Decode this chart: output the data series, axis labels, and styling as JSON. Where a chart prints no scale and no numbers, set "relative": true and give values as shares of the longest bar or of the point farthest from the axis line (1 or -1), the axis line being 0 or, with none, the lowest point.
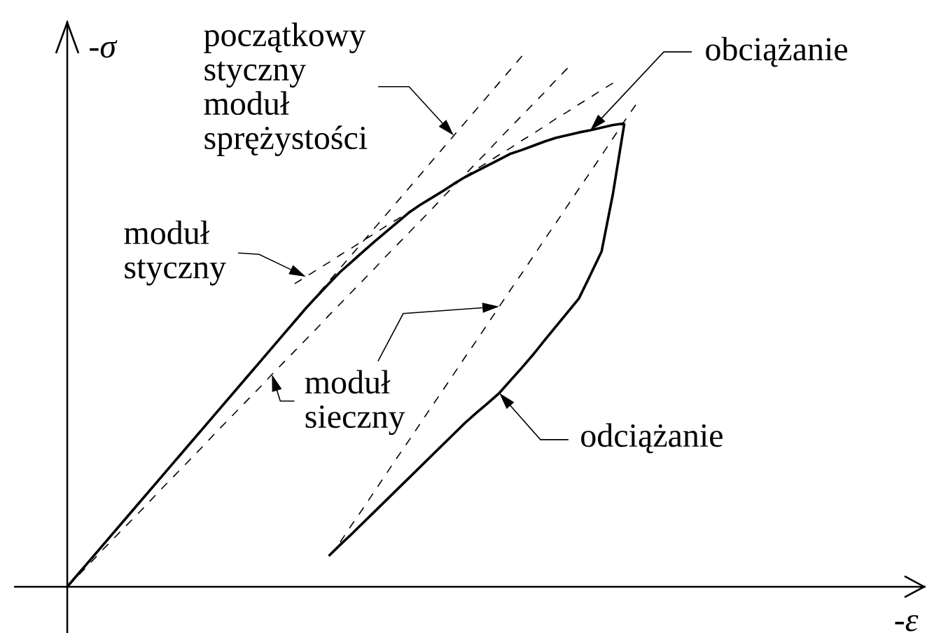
{
  "chart_data": {
    "type": "line",
    "relative": true,
    "ylabel": "-*σ*",
    "categories": [
      null,
      null,
      null,
      null,
      null,
      null,
      null,
      null,
      null,
      null,
      null,
      null,
      null,
      null,
      null,
      null,
      null,
      null,
      null,
      null,
      null,
      null,
      null,
      null,
      null,
      null,
      null,
      null,
      null,
      null,
      null,
      null,
      null,
      null,
      null,
      null,
      null,
      null,
      null,
      null,
      null,
      null,
      null,
      null,
      null,
      null,
      null,
      null,
      null,
      null,
      null
    ],
    "series": [
      {
        "color": "#000000",
        "line_style": "solid",
        "values": [
          0,
          0.025,
          0.05,
          0.075,
          0.1,
          0.125,
          0.15,
          0.175,
          0.2,
          0.225,
          0.25,
          0.275,
          0.3,
          0.325,
          0.35,
          0.375,
          0.4,
          0.425,
          0.45,
          0.475,
          0.5,
          0.525,
          0.548,
          0.571,
          0.593,
          0.612,
          0.631,
          0.65,
          0.668,
          0.686,
          0.704,
          0.719,
          0.732,
          0.745,
          0.759,
          0.772,
          0.783,
          0.794,
          0.805,
          0.816,
          0.823,
          0.831,
          0.839,
          0.846,
          0.851,
          0.856,
          0.86,
          0.865,
          0.87,
          0.873,
          null
        ]
      },
      {
        "color": "#000000",
        "line_style": "solid",
        "values": [
          null,
          null,
          null,
          null,
          null,
          null,
          null,
          null,
          null,
          null,
          null,
          null,
          null,
          null,
          null,
          null,
          null,
          null,
          null,
          null,
          null,
          null,
          null,
          0.058,
          0.079,
          0.099,
          0.12,
          0.141,
          0.162,
          0.183,
          0.204,
          0.225,
          0.246,
          0.267,
          0.288,
          0.309,
          0.328,
          0.346,
          0.365,
          0.389,
          0.413,
          0.438,
          0.465,
          0.491,
          0.517,
          0.543,
          0.587,
          0.632,
          0.741,
          0.873,
          null
        ]
      },
      {
        "color": "#000000",
        "line_style": "dashed",
        "values": [
          0,
          0.025,
          0.05,
          0.075,
          0.1,
          0.125,
          0.15,
          0.175,
          0.2,
          0.225,
          0.25,
          0.275,
          0.3,
          0.325,
          0.35,
          0.375,
          0.4,
          0.425,
          0.45,
          0.475,
          0.5,
          0.525,
          0.55,
          0.575,
          0.6,
          0.625,
          0.65,
          0.675,
          0.7,
          0.725,
          0.75,
          0.775,
          0.8,
          0.825,
          0.85,
          0.875,
          0.9,
          0.925,
          0.95,
          0.975,
          1,
          null,
          null,
          null,
          null,
          null,
          null,
          null,
          null,
          null,
          null
        ]
      },
      {
        "color": "#000000",
        "line_style": "dashed",
        "values": [
          null,
          null,
          null,
          null,
          null,
          null,
          null,
          null,
          null,
          null,
          null,
          null,
          null,
          null,
          null,
          null,
          null,
          null,
          null,
          null,
          0.571,
          0.584,
          0.598,
          0.611,
          0.625,
          0.638,
          0.652,
          0.665,
          0.679,
          0.692,
          0.706,
          0.719,
          0.733,
          0.746,
          0.76,
          0.773,
          0.787,
          0.8,
          0.814,
          0.827,
          0.841,
          0.854,
          0.868,
          0.882,
          0.895,
          0.909,
          0.922,
          0.936,
          0.949,
          null,
          null
        ]
      },
      {
        "color": "#000000",
        "line_style": "dashed",
        "values": [
          0,
          0.022,
          0.044,
          0.067,
          0.089,
          0.111,
          0.133,
          0.155,
          0.178,
          0.2,
          0.222,
          0.244,
          0.266,
          0.289,
          0.311,
          0.333,
          0.355,
          0.377,
          0.4,
          0.422,
          0.444,
          0.466,
          0.488,
          0.511,
          0.533,
          0.555,
          0.577,
          0.599,
          0.622,
          0.644,
          0.666,
          0.688,
          0.71,
          0.733,
          0.755,
          0.777,
          0.799,
          0.821,
          0.844,
          0.866,
          0.888,
          0.91,
          0.932,
          0.955,
          0.977,
          null,
          null,
          null,
          null,
          null,
          null
        ]
      },
      {
        "color": "#000000",
        "line_style": "dashed",
        "values": [
          null,
          null,
          null,
          null,
          null,
          null,
          null,
          null,
          null,
          null,
          null,
          null,
          null,
          null,
          null,
          null,
          null,
          null,
          null,
          null,
          null,
          null,
          null,
          null,
          0.084,
          0.116,
          0.147,
          0.179,
          0.211,
          0.243,
          0.274,
          0.306,
          0.338,
          0.369,
          0.401,
          0.433,
          0.464,
          0.496,
          0.528,
          0.56,
          0.591,
          0.623,
          0.655,
          0.686,
          0.718,
          0.75,
          0.781,
          0.813,
          0.845,
          0.877,
          0.908
        ]
      }
    ],
    "annotations": [
      "początkowy styczny moduł sprężystości",
      "moduł styczny",
      "moduł sieczny",
      "obciążanie",
      "odciążanie",
      "-*ε*"
    ]
  }
}
